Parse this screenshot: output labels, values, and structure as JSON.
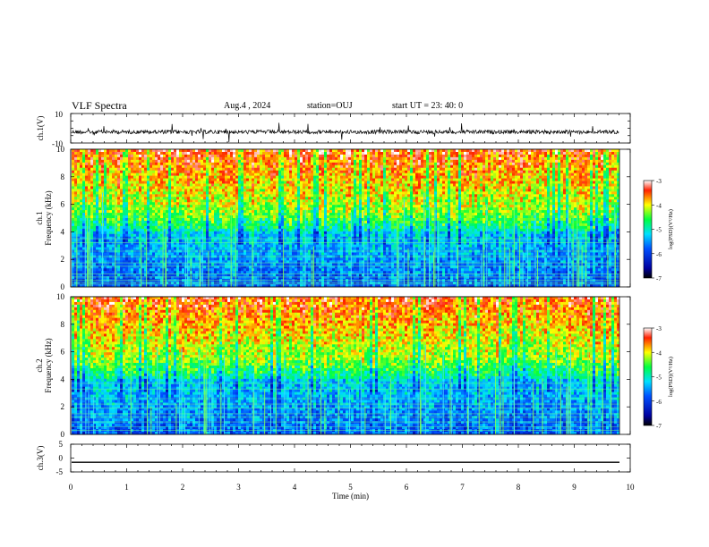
{
  "header": {
    "title": "VLF Spectra",
    "date": "Aug.4 , 2024",
    "station": "station=OUJ",
    "start": "start UT = 23: 40: 0"
  },
  "chart_data": [
    {
      "type": "line",
      "panel": "ch1-waveform",
      "ylabel": "ch.1(V)",
      "ylim": [
        -10,
        10
      ],
      "yticks": [
        "10",
        "-10"
      ],
      "xlim": [
        0,
        10
      ],
      "baseline": -2.5,
      "noise_amplitude": 1.2
    },
    {
      "type": "heatmap",
      "panel": "ch1-spectrogram",
      "ylabel_line1": "ch.1",
      "ylabel_line2": "Frequency (kHz)",
      "ylim": [
        0,
        10
      ],
      "yticks": [
        "0",
        "2",
        "4",
        "6",
        "8",
        "10"
      ],
      "xlim": [
        0,
        9.85
      ],
      "colorbar": {
        "label": "log(PSD)(V²/Hz)",
        "range": [
          -7,
          -3
        ],
        "ticks": [
          "-3",
          "-4",
          "-5",
          "-6",
          "-7"
        ]
      }
    },
    {
      "type": "heatmap",
      "panel": "ch2-spectrogram",
      "ylabel_line1": "ch.2",
      "ylabel_line2": "Frequency (kHz)",
      "ylim": [
        0,
        10
      ],
      "yticks": [
        "0",
        "2",
        "4",
        "6",
        "8",
        "10"
      ],
      "xlim": [
        0,
        9.85
      ],
      "colorbar": {
        "label": "log(PSD)(V²/Hz)",
        "range": [
          -7,
          -3
        ],
        "ticks": [
          "-3",
          "-4",
          "-5",
          "-6",
          "-7"
        ]
      }
    },
    {
      "type": "line",
      "panel": "ch3-waveform",
      "ylabel": "ch.3(V)",
      "ylim": [
        -5,
        5
      ],
      "yticks": [
        "5",
        "0",
        "-5"
      ],
      "xlim": [
        0,
        10
      ],
      "constant_value": -1.5
    }
  ],
  "xaxis": {
    "label": "Time (min)",
    "ticks": [
      "0",
      "1",
      "2",
      "3",
      "4",
      "5",
      "6",
      "7",
      "8",
      "9",
      "10"
    ]
  },
  "colors": {
    "colormap": [
      "#000080",
      "#0000ff",
      "#00ffff",
      "#00ff00",
      "#ffff00",
      "#ff0000"
    ]
  }
}
